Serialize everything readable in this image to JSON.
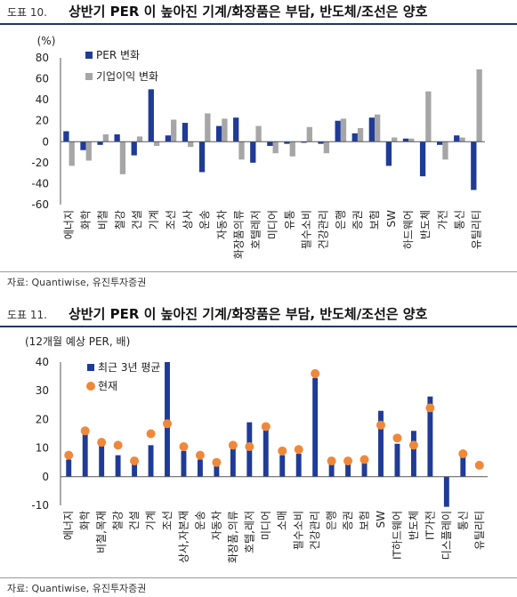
{
  "figures": [
    {
      "number": "도표 10.",
      "title": "상반기 PER 이 높아진 기계/화장품은 부담, 반도체/조선은 양호",
      "source": "자료: Quantiwise, 유진투자증권"
    },
    {
      "number": "도표 11.",
      "title": "상반기 PER 이 높아진 기계/화장품은 부담, 반도체/조선은 양호",
      "source": "자료: Quantiwise, 유진투자증권"
    }
  ],
  "colors": {
    "navy": "#1f3b96",
    "gray": "#a6a6a6",
    "orange": "#f0883a"
  },
  "chart_data": [
    {
      "type": "bar",
      "ylabel": "(%)",
      "ylim": [
        -60,
        80
      ],
      "yticks": [
        80,
        60,
        40,
        20,
        0,
        -20,
        -40,
        -60
      ],
      "legend_placement": "top-left",
      "categories": [
        "에너지",
        "화학",
        "비철",
        "철강",
        "건설",
        "기계",
        "조선",
        "상사",
        "운송",
        "자동차",
        "화장품의류",
        "호텔레저",
        "미디어",
        "유통",
        "필수소비",
        "건강관리",
        "은행",
        "증권",
        "보험",
        "SW",
        "하드웨어",
        "반도체",
        "가전",
        "통신",
        "유틸리티"
      ],
      "series": [
        {
          "name": "PER 변화",
          "values": [
            10,
            -8,
            -3,
            7,
            -13,
            50,
            6,
            18,
            -29,
            15,
            23,
            -20,
            -4,
            -2,
            -1,
            -2,
            20,
            8,
            23,
            -23,
            3,
            -33,
            -3,
            6,
            -46
          ]
        },
        {
          "name": "기업이익 변화",
          "values": [
            -23,
            -18,
            7,
            -31,
            5,
            -4,
            21,
            -5,
            27,
            22,
            -17,
            15,
            -11,
            -14,
            14,
            -11,
            22,
            13,
            26,
            4,
            3,
            48,
            -17,
            4,
            69
          ]
        }
      ]
    },
    {
      "type": "bar",
      "ylabel": "(12개월 예상 PER, 배)",
      "ylim": [
        -10,
        40
      ],
      "yticks": [
        40,
        30,
        20,
        10,
        0,
        -10
      ],
      "legend_placement": "top-left",
      "categories": [
        "에너지",
        "화학",
        "비철,목재",
        "철강",
        "건설",
        "기계",
        "조선",
        "상사,자본재",
        "운송",
        "자동차",
        "화장품,의류",
        "호텔,레저",
        "미디어",
        "소매",
        "필수소비",
        "건강관리",
        "은행",
        "증권",
        "보험",
        "SW",
        "IT하드웨어",
        "반도체",
        "IT가전",
        "디스플레이",
        "통신",
        "유틸리티"
      ],
      "series": [
        {
          "name": "최근 3년 평균",
          "values": [
            6,
            15,
            11,
            7.5,
            6.5,
            11,
            40,
            9,
            6,
            4,
            10,
            19,
            17,
            7.5,
            8,
            34.5,
            4.5,
            4.5,
            5.5,
            23,
            11.5,
            16,
            28,
            -10.5,
            7,
            0
          ]
        },
        {
          "name": "현재",
          "values": [
            7.5,
            16,
            12,
            11,
            5.5,
            15,
            18.5,
            10.5,
            7.5,
            5,
            11,
            10.5,
            17.5,
            9,
            9.5,
            36,
            5.5,
            5.5,
            6,
            18,
            13.5,
            11,
            24,
            null,
            8,
            4
          ]
        }
      ]
    }
  ]
}
